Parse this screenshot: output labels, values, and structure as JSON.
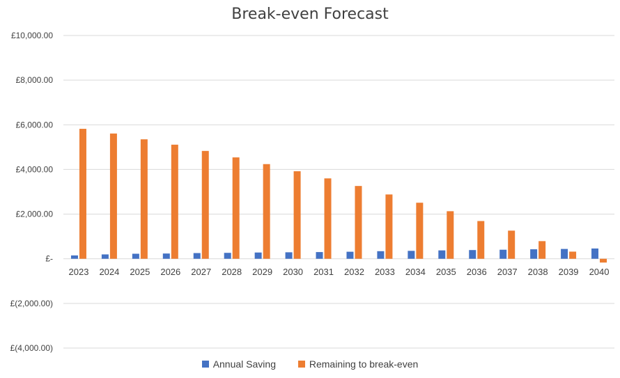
{
  "chart_data": {
    "type": "bar",
    "title": "Break-even Forecast",
    "xlabel": "",
    "ylabel": "",
    "categories": [
      "2023",
      "2024",
      "2025",
      "2026",
      "2027",
      "2028",
      "2029",
      "2030",
      "2031",
      "2032",
      "2033",
      "2034",
      "2035",
      "2036",
      "2037",
      "2038",
      "2039",
      "2040"
    ],
    "ylim": [
      -4000,
      10000
    ],
    "yticks": [
      10000,
      8000,
      6000,
      4000,
      2000,
      0,
      -2000,
      -4000
    ],
    "ytick_labels": [
      "£10,000.00",
      "£8,000.00",
      "£6,000.00",
      "£4,000.00",
      "£2,000.00",
      "£-",
      "£(2,000.00)",
      "£(4,000.00)"
    ],
    "grid": true,
    "legend_position": "bottom",
    "series": [
      {
        "name": "Annual Saving",
        "color": "#4472C4",
        "values": [
          150,
          195,
          225,
          235,
          255,
          265,
          280,
          290,
          300,
          315,
          340,
          355,
          375,
          390,
          405,
          425,
          440,
          460
        ]
      },
      {
        "name": "Remaining to break-even",
        "color": "#ED7D31",
        "values": [
          5820,
          5610,
          5350,
          5110,
          4830,
          4540,
          4240,
          3920,
          3600,
          3260,
          2880,
          2510,
          2130,
          1690,
          1260,
          790,
          320,
          -170
        ]
      }
    ]
  }
}
